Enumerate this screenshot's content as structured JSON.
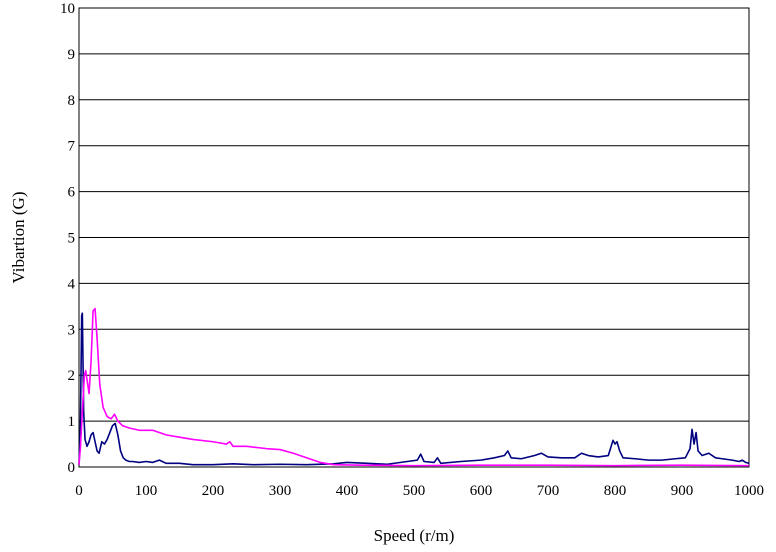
{
  "chart_data": {
    "type": "line",
    "title": "",
    "xlabel": "Speed (r/m)",
    "ylabel": "Vibartion (G)",
    "xlim": [
      0,
      1000
    ],
    "ylim": [
      0,
      10
    ],
    "x_ticks": [
      "0",
      "100",
      "200",
      "300",
      "400",
      "500",
      "600",
      "700",
      "800",
      "900",
      "1000"
    ],
    "y_ticks": [
      "0",
      "1",
      "2",
      "3",
      "4",
      "5",
      "6",
      "7",
      "8",
      "9",
      "10"
    ],
    "grid": "horizontal",
    "legend": "none",
    "series": [
      {
        "color": "#000080",
        "points": [
          [
            0,
            0.05
          ],
          [
            2,
            0.8
          ],
          [
            4,
            3.3
          ],
          [
            5,
            3.35
          ],
          [
            7,
            1.2
          ],
          [
            9,
            0.6
          ],
          [
            12,
            0.45
          ],
          [
            15,
            0.55
          ],
          [
            18,
            0.7
          ],
          [
            21,
            0.75
          ],
          [
            24,
            0.55
          ],
          [
            27,
            0.35
          ],
          [
            30,
            0.3
          ],
          [
            34,
            0.55
          ],
          [
            38,
            0.5
          ],
          [
            42,
            0.6
          ],
          [
            46,
            0.75
          ],
          [
            50,
            0.9
          ],
          [
            54,
            0.95
          ],
          [
            58,
            0.7
          ],
          [
            62,
            0.35
          ],
          [
            66,
            0.2
          ],
          [
            70,
            0.15
          ],
          [
            75,
            0.12
          ],
          [
            80,
            0.12
          ],
          [
            90,
            0.1
          ],
          [
            100,
            0.12
          ],
          [
            110,
            0.1
          ],
          [
            120,
            0.15
          ],
          [
            130,
            0.08
          ],
          [
            150,
            0.08
          ],
          [
            170,
            0.05
          ],
          [
            200,
            0.05
          ],
          [
            230,
            0.07
          ],
          [
            260,
            0.05
          ],
          [
            300,
            0.06
          ],
          [
            340,
            0.05
          ],
          [
            380,
            0.07
          ],
          [
            400,
            0.1
          ],
          [
            430,
            0.08
          ],
          [
            460,
            0.06
          ],
          [
            490,
            0.12
          ],
          [
            505,
            0.15
          ],
          [
            510,
            0.28
          ],
          [
            515,
            0.12
          ],
          [
            530,
            0.1
          ],
          [
            535,
            0.2
          ],
          [
            540,
            0.08
          ],
          [
            570,
            0.12
          ],
          [
            600,
            0.15
          ],
          [
            620,
            0.2
          ],
          [
            635,
            0.25
          ],
          [
            640,
            0.35
          ],
          [
            645,
            0.2
          ],
          [
            660,
            0.18
          ],
          [
            680,
            0.25
          ],
          [
            690,
            0.3
          ],
          [
            700,
            0.22
          ],
          [
            720,
            0.2
          ],
          [
            740,
            0.2
          ],
          [
            750,
            0.3
          ],
          [
            760,
            0.25
          ],
          [
            775,
            0.22
          ],
          [
            790,
            0.25
          ],
          [
            797,
            0.58
          ],
          [
            800,
            0.5
          ],
          [
            803,
            0.55
          ],
          [
            807,
            0.35
          ],
          [
            812,
            0.2
          ],
          [
            830,
            0.18
          ],
          [
            850,
            0.15
          ],
          [
            870,
            0.15
          ],
          [
            890,
            0.18
          ],
          [
            905,
            0.2
          ],
          [
            912,
            0.4
          ],
          [
            915,
            0.82
          ],
          [
            918,
            0.5
          ],
          [
            921,
            0.75
          ],
          [
            924,
            0.35
          ],
          [
            930,
            0.25
          ],
          [
            940,
            0.3
          ],
          [
            950,
            0.2
          ],
          [
            960,
            0.18
          ],
          [
            975,
            0.15
          ],
          [
            985,
            0.12
          ],
          [
            990,
            0.15
          ],
          [
            995,
            0.1
          ],
          [
            1000,
            0.08
          ]
        ]
      },
      {
        "color": "#ff00ff",
        "points": [
          [
            0,
            0.05
          ],
          [
            2,
            0.4
          ],
          [
            5,
            1.2
          ],
          [
            8,
            2.0
          ],
          [
            10,
            2.1
          ],
          [
            13,
            1.8
          ],
          [
            15,
            1.6
          ],
          [
            18,
            2.3
          ],
          [
            21,
            3.4
          ],
          [
            24,
            3.45
          ],
          [
            27,
            2.8
          ],
          [
            31,
            1.8
          ],
          [
            36,
            1.3
          ],
          [
            42,
            1.1
          ],
          [
            48,
            1.05
          ],
          [
            53,
            1.15
          ],
          [
            58,
            1.0
          ],
          [
            65,
            0.9
          ],
          [
            75,
            0.85
          ],
          [
            90,
            0.8
          ],
          [
            110,
            0.8
          ],
          [
            130,
            0.7
          ],
          [
            150,
            0.65
          ],
          [
            170,
            0.6
          ],
          [
            200,
            0.55
          ],
          [
            220,
            0.5
          ],
          [
            225,
            0.55
          ],
          [
            230,
            0.45
          ],
          [
            250,
            0.45
          ],
          [
            280,
            0.4
          ],
          [
            300,
            0.38
          ],
          [
            320,
            0.3
          ],
          [
            340,
            0.2
          ],
          [
            360,
            0.1
          ],
          [
            380,
            0.05
          ],
          [
            420,
            0.04
          ],
          [
            500,
            0.03
          ],
          [
            600,
            0.04
          ],
          [
            700,
            0.04
          ],
          [
            800,
            0.03
          ],
          [
            900,
            0.04
          ],
          [
            1000,
            0.03
          ]
        ]
      }
    ]
  }
}
